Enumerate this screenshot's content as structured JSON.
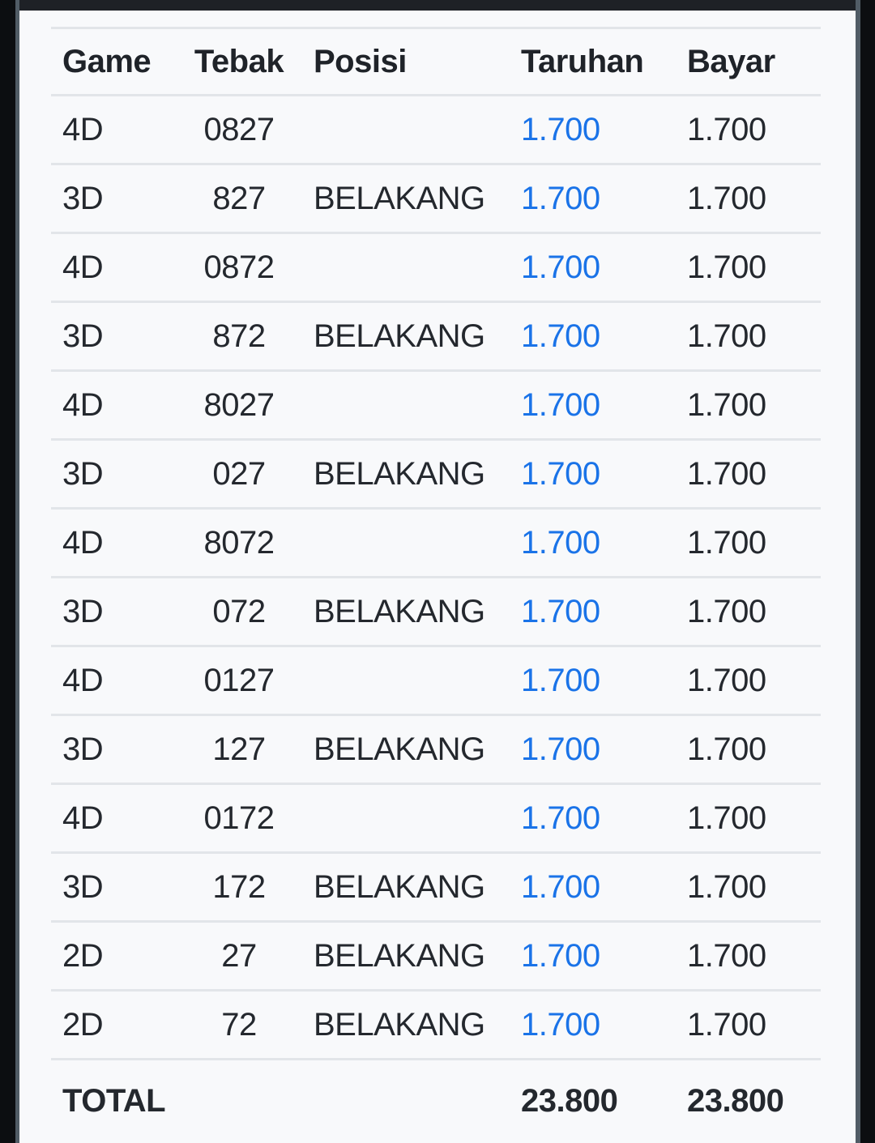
{
  "theme": {
    "page_side_color": "#0c0e11",
    "top_bar_color": "#1e2126",
    "edge_line_color": "#515c66",
    "card_background": "#f8f9fb",
    "divider_color": "#e2e5e9",
    "text_color": "#24282e",
    "header_text_color": "#1f2329",
    "bet_amount_color": "#1a73e8"
  },
  "bet_table": {
    "columns": [
      {
        "label": "Game"
      },
      {
        "label": "Tebak"
      },
      {
        "label": "Posisi"
      },
      {
        "label": "Taruhan"
      },
      {
        "label": "Bayar"
      }
    ],
    "rows": [
      {
        "game": "4D",
        "tebak": "0827",
        "posisi": "",
        "taruhan": "1.700",
        "bayar": "1.700"
      },
      {
        "game": "3D",
        "tebak": "827",
        "posisi": "BELAKANG",
        "taruhan": "1.700",
        "bayar": "1.700"
      },
      {
        "game": "4D",
        "tebak": "0872",
        "posisi": "",
        "taruhan": "1.700",
        "bayar": "1.700"
      },
      {
        "game": "3D",
        "tebak": "872",
        "posisi": "BELAKANG",
        "taruhan": "1.700",
        "bayar": "1.700"
      },
      {
        "game": "4D",
        "tebak": "8027",
        "posisi": "",
        "taruhan": "1.700",
        "bayar": "1.700"
      },
      {
        "game": "3D",
        "tebak": "027",
        "posisi": "BELAKANG",
        "taruhan": "1.700",
        "bayar": "1.700"
      },
      {
        "game": "4D",
        "tebak": "8072",
        "posisi": "",
        "taruhan": "1.700",
        "bayar": "1.700"
      },
      {
        "game": "3D",
        "tebak": "072",
        "posisi": "BELAKANG",
        "taruhan": "1.700",
        "bayar": "1.700"
      },
      {
        "game": "4D",
        "tebak": "0127",
        "posisi": "",
        "taruhan": "1.700",
        "bayar": "1.700"
      },
      {
        "game": "3D",
        "tebak": "127",
        "posisi": "BELAKANG",
        "taruhan": "1.700",
        "bayar": "1.700"
      },
      {
        "game": "4D",
        "tebak": "0172",
        "posisi": "",
        "taruhan": "1.700",
        "bayar": "1.700"
      },
      {
        "game": "3D",
        "tebak": "172",
        "posisi": "BELAKANG",
        "taruhan": "1.700",
        "bayar": "1.700"
      },
      {
        "game": "2D",
        "tebak": "27",
        "posisi": "BELAKANG",
        "taruhan": "1.700",
        "bayar": "1.700"
      },
      {
        "game": "2D",
        "tebak": "72",
        "posisi": "BELAKANG",
        "taruhan": "1.700",
        "bayar": "1.700"
      }
    ],
    "total": {
      "label": "TOTAL",
      "taruhan": "23.800",
      "bayar": "23.800"
    }
  }
}
